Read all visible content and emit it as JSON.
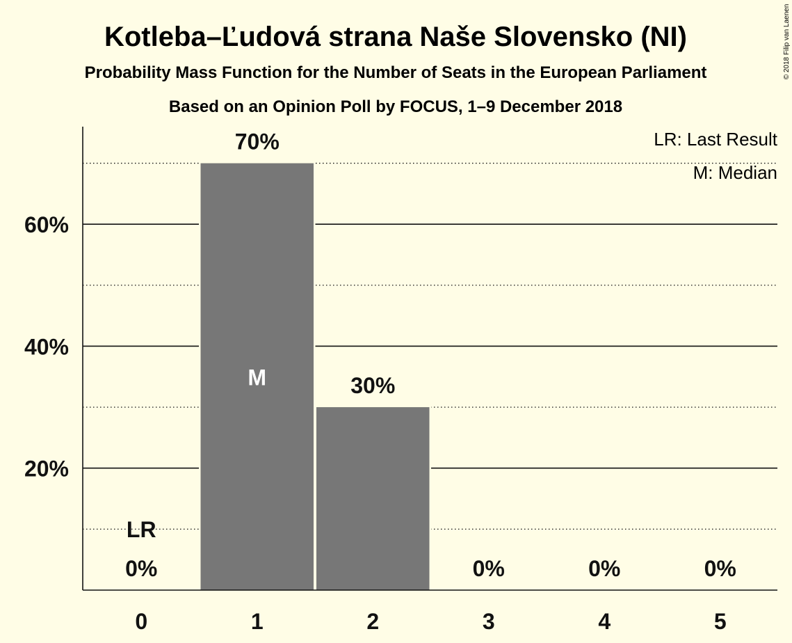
{
  "colors": {
    "background": "#fffde6",
    "bar": "#777777",
    "text": "#111111",
    "median_label": "#ffffff"
  },
  "chart_data": {
    "type": "bar",
    "title": "Kotleba–Ľudová strana Naše Slovensko (NI)",
    "subtitle": "Probability Mass Function for the Number of Seats in the European Parliament",
    "subtitle2": "Based on an Opinion Poll by FOCUS, 1–9 December 2018",
    "credit": "© 2018 Filip van Laenen",
    "categories": [
      "0",
      "1",
      "2",
      "3",
      "4",
      "5"
    ],
    "values": [
      0,
      70,
      30,
      0,
      0,
      0
    ],
    "value_labels": [
      "0%",
      "70%",
      "30%",
      "0%",
      "0%",
      "0%"
    ],
    "y_ticks": [
      20,
      40,
      60
    ],
    "y_tick_labels": [
      "20%",
      "40%",
      "60%"
    ],
    "minor_gridlines": [
      10,
      30,
      50,
      70
    ],
    "ylim": [
      0,
      76
    ],
    "last_result": {
      "category": "0",
      "label": "LR"
    },
    "median": {
      "category": "1",
      "label": "M"
    },
    "legend": {
      "placement": "top-right",
      "items": [
        "LR: Last Result",
        "M: Median"
      ]
    },
    "grid": true
  }
}
